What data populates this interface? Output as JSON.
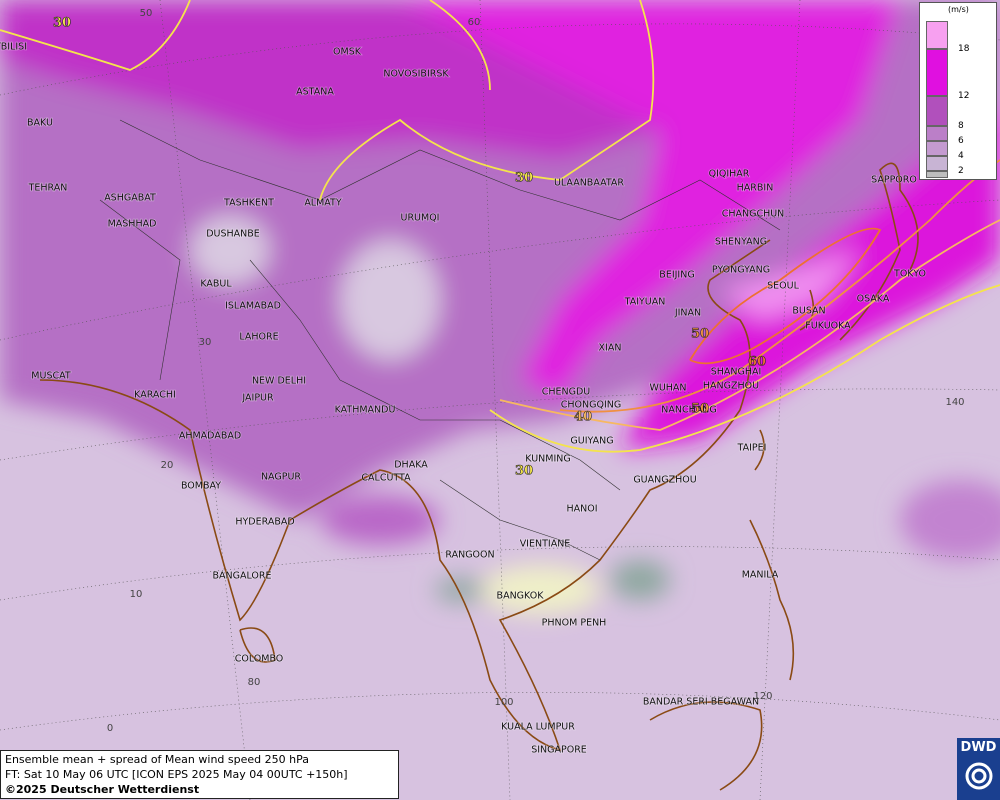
{
  "legend": {
    "unit": "(m/s)",
    "ticks": [
      2,
      4,
      6,
      8,
      12,
      18
    ],
    "colors": [
      "#bdbdbd",
      "#c8b4d4",
      "#c49ad0",
      "#bb7fc8",
      "#b150bc",
      "#e010e0",
      "#f7a0f0"
    ]
  },
  "cities": [
    "OMSK",
    "NOVOSIBIRSK",
    "ASTANA",
    "TBILISI",
    "BAKU",
    "TEHRAN",
    "ASHGABAT",
    "MASHHAD",
    "TASHKENT",
    "ALMATY",
    "DUSHANBE",
    "URUMQI",
    "ULAANBAATAR",
    "QIQIHAR",
    "HARBIN",
    "CHANGCHUN",
    "SHENYANG",
    "BEIJING",
    "PYONGYANG",
    "SEOUL",
    "SAPPORO",
    "TOKYO",
    "TAIYUAN",
    "JINAN",
    "BUSAN",
    "OSAKA",
    "FUKUOKA",
    "KABUL",
    "ISLAMABAD",
    "LAHORE",
    "XIAN",
    "NEW DELHI",
    "JAIPUR",
    "KARACHI",
    "MUSCAT",
    "CHENGDU",
    "CHONGQING",
    "WUHAN",
    "HANGZHOU",
    "SHANGHAI",
    "NANCHANG",
    "KATHMANDU",
    "AHMADABAD",
    "GUIYANG",
    "KUNMING",
    "TAIPEI",
    "DHAKA",
    "CALCUTTA",
    "NAGPUR",
    "BOMBAY",
    "GUANGZHOU",
    "HANOI",
    "HYDERABAD",
    "RANGOON",
    "VIENTIANE",
    "MANILA",
    "BANGALORE",
    "BANGKOK",
    "PHNOM PENH",
    "COLOMBO",
    "BANDAR SERI BEGAWAN",
    "KUALA LUMPUR",
    "SINGAPORE"
  ],
  "graticule_labels": [
    50,
    60,
    30,
    20,
    10,
    0,
    80,
    100,
    120,
    140
  ],
  "contour_labels": [
    30,
    30,
    60,
    50,
    40,
    50,
    30
  ],
  "footer": {
    "line1": "Ensemble mean + spread of Mean wind speed 250 hPa",
    "line2": "FT: Sat 10 May 06 UTC [ICON EPS 2025 May 04 00UTC +150h]",
    "line3": "©2025 Deutscher Wetterdienst"
  },
  "logo": "DWD"
}
